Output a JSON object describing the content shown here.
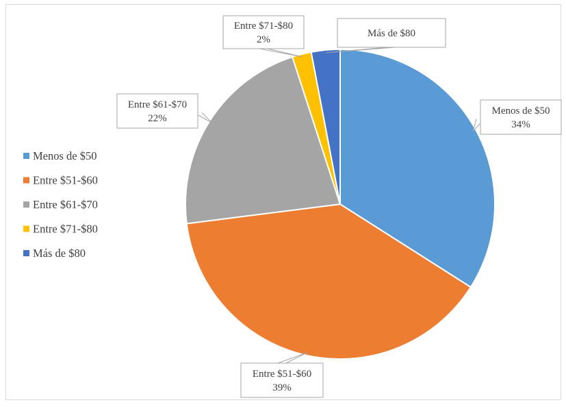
{
  "chart_data": {
    "type": "pie",
    "title": "",
    "legend_position": "left",
    "slices": [
      {
        "label": "Menos de $50",
        "value": 34,
        "value_label": "34%",
        "color": "#5B9BD5"
      },
      {
        "label": "Entre $51-$60",
        "value": 39,
        "value_label": "39%",
        "color": "#ED7D31"
      },
      {
        "label": "Entre $61-$70",
        "value": 22,
        "value_label": "22%",
        "color": "#A5A5A5"
      },
      {
        "label": "Entre $71-$80",
        "value": 2,
        "value_label": "2%",
        "color": "#FFC000"
      },
      {
        "label": "Más de $80",
        "value": 3,
        "value_label": "",
        "color": "#4472C4"
      }
    ]
  }
}
